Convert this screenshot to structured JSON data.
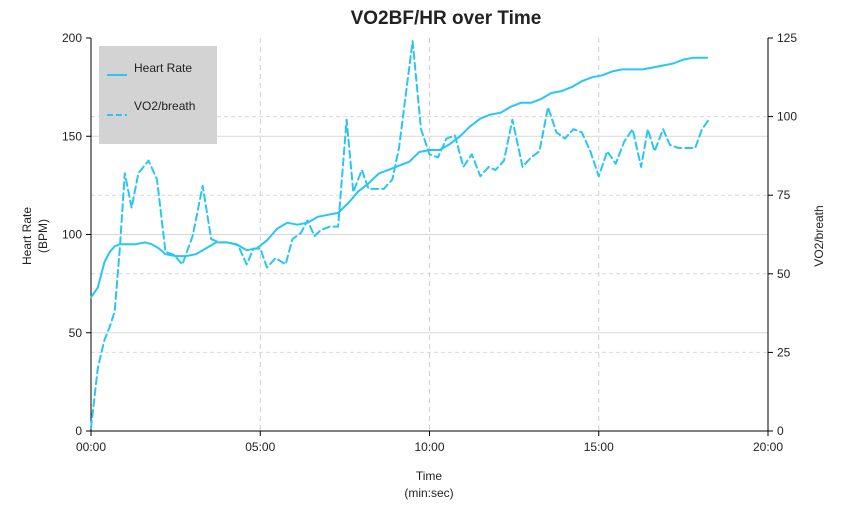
{
  "chart_data": {
    "type": "line",
    "title": "VO2BF/HR over Time",
    "xlabel": "Time",
    "xlabel_sub": "(min:sec)",
    "ylabel_left_line1": "Heart Rate",
    "ylabel_left_line2": "(BPM)",
    "ylabel_right": "VO2/breath",
    "xlim": [
      0,
      20
    ],
    "ylim_left": [
      0,
      200
    ],
    "ylim_right": [
      0,
      125
    ],
    "x_ticks": [
      {
        "value": 0,
        "label": "00:00"
      },
      {
        "value": 5,
        "label": "05:00"
      },
      {
        "value": 10,
        "label": "10:00"
      },
      {
        "value": 15,
        "label": "15:00"
      },
      {
        "value": 20,
        "label": "20:00"
      }
    ],
    "y_left_ticks": [
      0,
      50,
      100,
      150,
      200
    ],
    "y_right_ticks": [
      0,
      25,
      50,
      75,
      100,
      125
    ],
    "grid": true,
    "legend_position": "top-left",
    "legend_bg": "#d3d3d3",
    "line_color": "#29c6f4",
    "series": [
      {
        "name": "Heart Rate",
        "axis": "left",
        "style": "solid",
        "x": [
          0,
          0.2,
          0.4,
          0.55,
          0.7,
          0.85,
          1.0,
          1.3,
          1.6,
          1.8,
          2.0,
          2.2,
          2.5,
          2.8,
          3.1,
          3.4,
          3.7,
          4.0,
          4.3,
          4.6,
          4.9,
          5.2,
          5.5,
          5.8,
          6.1,
          6.4,
          6.7,
          7.0,
          7.3,
          7.6,
          7.9,
          8.2,
          8.5,
          8.8,
          9.1,
          9.4,
          9.7,
          10.0,
          10.3,
          10.6,
          10.9,
          11.2,
          11.5,
          11.8,
          12.1,
          12.4,
          12.7,
          13.0,
          13.3,
          13.6,
          13.9,
          14.2,
          14.5,
          14.8,
          15.1,
          15.4,
          15.7,
          16.0,
          16.3,
          16.6,
          16.9,
          17.2,
          17.5,
          17.8,
          18.0,
          18.2
        ],
        "y": [
          68,
          73,
          86,
          91,
          94,
          95,
          95,
          95,
          96,
          95,
          93,
          90,
          89,
          89,
          90,
          93,
          96,
          96,
          95,
          92,
          93,
          97,
          103,
          106,
          105,
          106,
          109,
          110,
          111,
          116,
          122,
          126,
          131,
          133,
          135,
          137,
          142,
          143,
          143,
          146,
          150,
          155,
          159,
          161,
          162,
          165,
          167,
          167,
          169,
          172,
          173,
          175,
          178,
          180,
          181,
          183,
          184,
          184,
          184,
          185,
          186,
          187,
          189,
          190,
          190,
          190
        ]
      },
      {
        "name": "VO2/breath",
        "axis": "right",
        "style": "dashed",
        "x": [
          0,
          0.2,
          0.4,
          0.55,
          0.7,
          0.85,
          1.0,
          1.2,
          1.4,
          1.7,
          1.95,
          2.2,
          2.45,
          2.7,
          3.0,
          3.3,
          3.55,
          3.8,
          4.1,
          4.35,
          4.6,
          4.8,
          5.0,
          5.2,
          5.45,
          5.75,
          5.95,
          6.2,
          6.4,
          6.6,
          6.8,
          7.05,
          7.3,
          7.55,
          7.75,
          8.0,
          8.2,
          8.45,
          8.65,
          8.9,
          9.1,
          9.3,
          9.5,
          9.75,
          10.0,
          10.25,
          10.5,
          10.75,
          11.0,
          11.25,
          11.5,
          11.75,
          11.95,
          12.2,
          12.45,
          12.75,
          13.0,
          13.25,
          13.5,
          13.75,
          14.0,
          14.25,
          14.5,
          14.75,
          15.0,
          15.25,
          15.5,
          15.75,
          16.0,
          16.25,
          16.45,
          16.65,
          16.9,
          17.1,
          17.35,
          17.6,
          17.85,
          18.05,
          18.25
        ],
        "y": [
          1,
          20,
          29,
          33,
          38,
          58,
          82,
          71,
          82,
          86,
          80,
          57,
          56,
          53,
          62,
          78,
          61,
          60,
          60,
          59,
          53,
          58,
          58,
          52,
          55,
          53,
          61,
          63,
          67,
          62,
          64,
          65,
          65,
          99,
          76,
          83,
          77,
          77,
          77,
          80,
          90,
          107,
          124,
          96,
          88,
          87,
          93,
          94,
          84,
          88,
          81,
          84,
          83,
          86,
          99,
          84,
          87,
          89,
          103,
          95,
          93,
          96,
          95,
          89,
          81,
          89,
          85,
          92,
          96,
          84,
          96,
          89,
          96,
          91,
          90,
          90,
          90,
          96,
          99
        ]
      }
    ]
  }
}
